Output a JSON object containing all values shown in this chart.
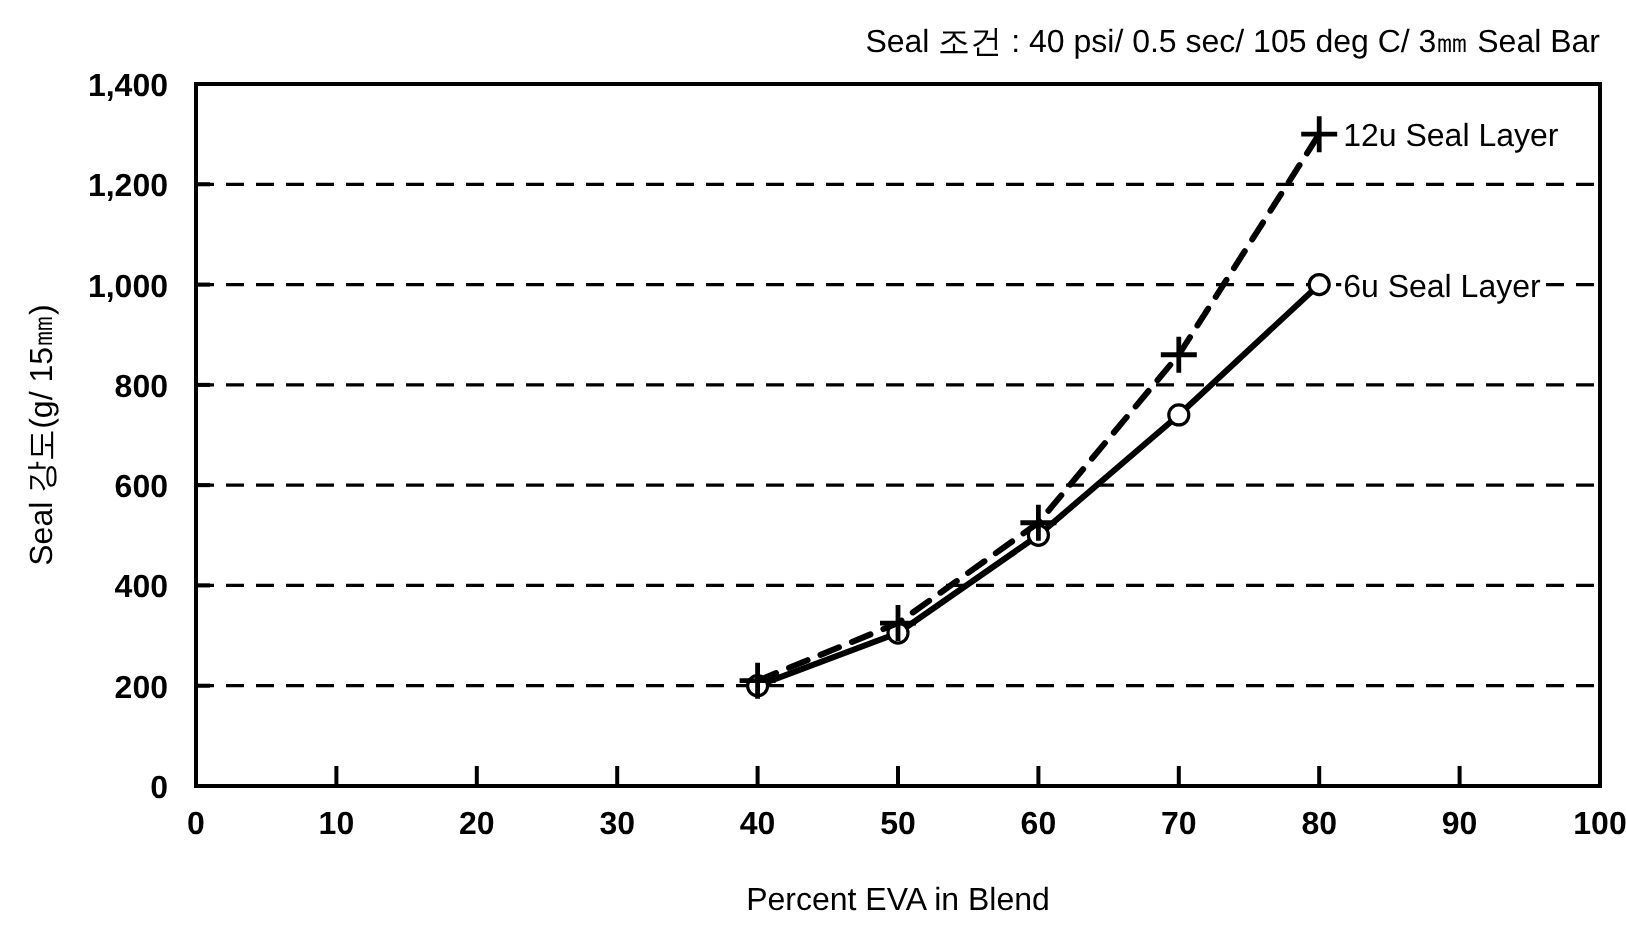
{
  "chart_data": {
    "type": "line",
    "title": "Seal 조건 : 40 psi/ 0.5 sec/ 105 deg C/ 3㎜ Seal Bar",
    "xlabel": "Percent EVA in Blend",
    "ylabel": "Seal 강도(g/ 15㎜)",
    "x": [
      40,
      50,
      60,
      70,
      80
    ],
    "series": [
      {
        "name": "12u Seal Layer",
        "color": "#000000",
        "marker": "cross",
        "line_style": "dashed",
        "values": [
          210,
          325,
          525,
          860,
          1300
        ]
      },
      {
        "name": "6u Seal Layer",
        "color": "#000000",
        "marker": "circle",
        "line_style": "solid",
        "values": [
          200,
          305,
          500,
          740,
          1000
        ]
      }
    ],
    "xlim": [
      0,
      100
    ],
    "xticks": [
      0,
      10,
      20,
      30,
      40,
      50,
      60,
      70,
      80,
      90,
      100
    ],
    "ylim": [
      0,
      1400
    ],
    "yticks": [
      0,
      200,
      400,
      600,
      800,
      {
        "value": 1000,
        "label": "1,000"
      },
      {
        "value": 1200,
        "label": "1,200"
      },
      {
        "value": 1400,
        "label": "1,400"
      }
    ],
    "grid": "y"
  }
}
